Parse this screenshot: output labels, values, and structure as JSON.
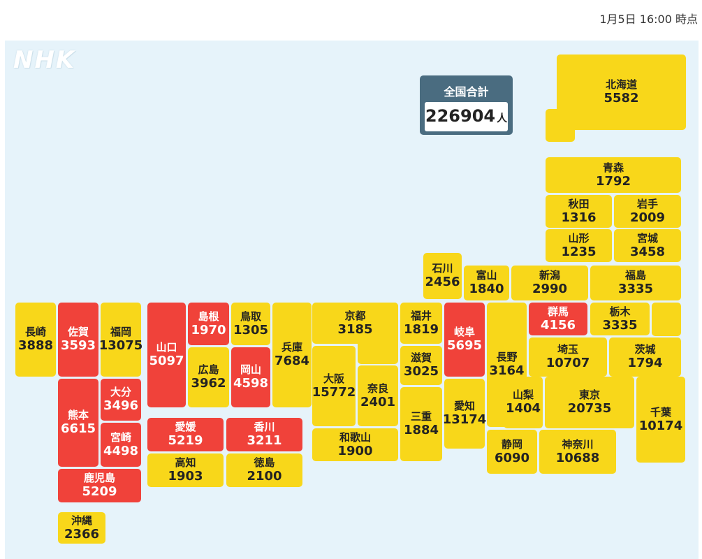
{
  "timestamp": "1月5日 16:00 時点",
  "logo": "NHK",
  "total": {
    "label": "全国合計",
    "value": "226904",
    "unit": "人"
  },
  "colors": {
    "yellow": "#f8d71a",
    "red": "#f0423a",
    "background": "#e6f3fa",
    "total_panel": "#4a6c80"
  },
  "prefectures": [
    {
      "name": "北海道",
      "value": "5582",
      "color": "yellow"
    },
    {
      "name": "青森",
      "value": "1792",
      "color": "yellow"
    },
    {
      "name": "秋田",
      "value": "1316",
      "color": "yellow"
    },
    {
      "name": "岩手",
      "value": "2009",
      "color": "yellow"
    },
    {
      "name": "山形",
      "value": "1235",
      "color": "yellow"
    },
    {
      "name": "宮城",
      "value": "3458",
      "color": "yellow"
    },
    {
      "name": "石川",
      "value": "2456",
      "color": "yellow"
    },
    {
      "name": "富山",
      "value": "1840",
      "color": "yellow"
    },
    {
      "name": "新潟",
      "value": "2990",
      "color": "yellow"
    },
    {
      "name": "福島",
      "value": "3335",
      "color": "yellow"
    },
    {
      "name": "長崎",
      "value": "3888",
      "color": "yellow"
    },
    {
      "name": "佐賀",
      "value": "3593",
      "color": "red"
    },
    {
      "name": "福岡",
      "value": "13075",
      "color": "yellow"
    },
    {
      "name": "山口",
      "value": "5097",
      "color": "red"
    },
    {
      "name": "島根",
      "value": "1970",
      "color": "red"
    },
    {
      "name": "鳥取",
      "value": "1305",
      "color": "yellow"
    },
    {
      "name": "兵庫",
      "value": "7684",
      "color": "yellow"
    },
    {
      "name": "京都",
      "value": "3185",
      "color": "yellow"
    },
    {
      "name": "福井",
      "value": "1819",
      "color": "yellow"
    },
    {
      "name": "岐阜",
      "value": "5695",
      "color": "red"
    },
    {
      "name": "長野",
      "value": "3164",
      "color": "yellow"
    },
    {
      "name": "群馬",
      "value": "4156",
      "color": "red"
    },
    {
      "name": "栃木",
      "value": "3335",
      "color": "yellow"
    },
    {
      "name": "広島",
      "value": "3962",
      "color": "yellow"
    },
    {
      "name": "岡山",
      "value": "4598",
      "color": "red"
    },
    {
      "name": "滋賀",
      "value": "3025",
      "color": "yellow"
    },
    {
      "name": "埼玉",
      "value": "10707",
      "color": "yellow"
    },
    {
      "name": "茨城",
      "value": "1794",
      "color": "yellow"
    },
    {
      "name": "大分",
      "value": "3496",
      "color": "red"
    },
    {
      "name": "熊本",
      "value": "6615",
      "color": "red"
    },
    {
      "name": "宮崎",
      "value": "4498",
      "color": "red"
    },
    {
      "name": "大阪",
      "value": "15772",
      "color": "yellow"
    },
    {
      "name": "奈良",
      "value": "2401",
      "color": "yellow"
    },
    {
      "name": "三重",
      "value": "1884",
      "color": "yellow"
    },
    {
      "name": "愛知",
      "value": "13174",
      "color": "yellow"
    },
    {
      "name": "山梨",
      "value": "1404",
      "color": "yellow"
    },
    {
      "name": "東京",
      "value": "20735",
      "color": "yellow"
    },
    {
      "name": "千葉",
      "value": "10174",
      "color": "yellow"
    },
    {
      "name": "愛媛",
      "value": "5219",
      "color": "red"
    },
    {
      "name": "香川",
      "value": "3211",
      "color": "red"
    },
    {
      "name": "和歌山",
      "value": "1900",
      "color": "yellow"
    },
    {
      "name": "静岡",
      "value": "6090",
      "color": "yellow"
    },
    {
      "name": "神奈川",
      "value": "10688",
      "color": "yellow"
    },
    {
      "name": "高知",
      "value": "1903",
      "color": "yellow"
    },
    {
      "name": "徳島",
      "value": "2100",
      "color": "yellow"
    },
    {
      "name": "鹿児島",
      "value": "5209",
      "color": "red"
    },
    {
      "name": "沖縄",
      "value": "2366",
      "color": "yellow"
    }
  ]
}
